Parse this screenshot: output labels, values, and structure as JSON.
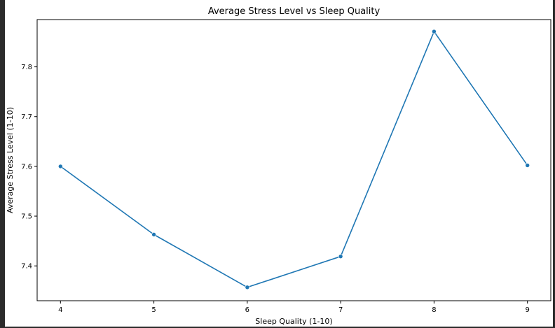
{
  "chart_data": {
    "type": "line",
    "title": "Average Stress Level vs Sleep Quality",
    "xlabel": "Sleep Quality (1-10)",
    "ylabel": "Average Stress Level (1-10)",
    "x": [
      4,
      5,
      6,
      7,
      8,
      9
    ],
    "series": [
      {
        "values": [
          7.6,
          7.463,
          7.357,
          7.419,
          7.871,
          7.602
        ],
        "color": "#1f77b4",
        "marker": "circle"
      }
    ],
    "xticks": [
      "4",
      "5",
      "6",
      "7",
      "8",
      "9"
    ],
    "yticks": [
      "7.4",
      "7.5",
      "7.6",
      "7.7",
      "7.8"
    ],
    "xlim": [
      3.75,
      9.25
    ],
    "ylim": [
      7.33,
      7.895
    ],
    "grid": false,
    "legend": "none"
  }
}
